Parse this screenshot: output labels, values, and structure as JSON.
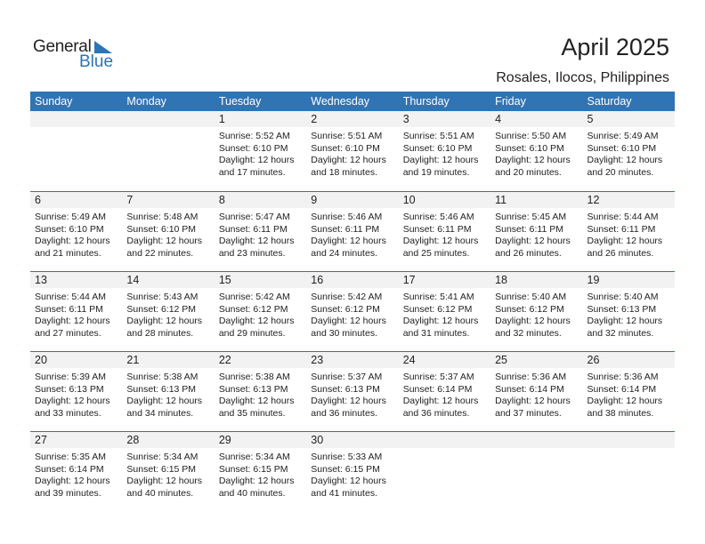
{
  "logo": {
    "text_general": "General",
    "text_blue": "Blue",
    "accent": "#2a74b8"
  },
  "title": "April 2025",
  "location": "Rosales, Ilocos, Philippines",
  "header_color": "#2f74b5",
  "weekdays": [
    "Sunday",
    "Monday",
    "Tuesday",
    "Wednesday",
    "Thursday",
    "Friday",
    "Saturday"
  ],
  "weeks": [
    [
      null,
      null,
      {
        "day": "1",
        "sunrise": "Sunrise: 5:52 AM",
        "sunset": "Sunset: 6:10 PM",
        "daylight1": "Daylight: 12 hours",
        "daylight2": "and 17 minutes."
      },
      {
        "day": "2",
        "sunrise": "Sunrise: 5:51 AM",
        "sunset": "Sunset: 6:10 PM",
        "daylight1": "Daylight: 12 hours",
        "daylight2": "and 18 minutes."
      },
      {
        "day": "3",
        "sunrise": "Sunrise: 5:51 AM",
        "sunset": "Sunset: 6:10 PM",
        "daylight1": "Daylight: 12 hours",
        "daylight2": "and 19 minutes."
      },
      {
        "day": "4",
        "sunrise": "Sunrise: 5:50 AM",
        "sunset": "Sunset: 6:10 PM",
        "daylight1": "Daylight: 12 hours",
        "daylight2": "and 20 minutes."
      },
      {
        "day": "5",
        "sunrise": "Sunrise: 5:49 AM",
        "sunset": "Sunset: 6:10 PM",
        "daylight1": "Daylight: 12 hours",
        "daylight2": "and 20 minutes."
      }
    ],
    [
      {
        "day": "6",
        "sunrise": "Sunrise: 5:49 AM",
        "sunset": "Sunset: 6:10 PM",
        "daylight1": "Daylight: 12 hours",
        "daylight2": "and 21 minutes."
      },
      {
        "day": "7",
        "sunrise": "Sunrise: 5:48 AM",
        "sunset": "Sunset: 6:10 PM",
        "daylight1": "Daylight: 12 hours",
        "daylight2": "and 22 minutes."
      },
      {
        "day": "8",
        "sunrise": "Sunrise: 5:47 AM",
        "sunset": "Sunset: 6:11 PM",
        "daylight1": "Daylight: 12 hours",
        "daylight2": "and 23 minutes."
      },
      {
        "day": "9",
        "sunrise": "Sunrise: 5:46 AM",
        "sunset": "Sunset: 6:11 PM",
        "daylight1": "Daylight: 12 hours",
        "daylight2": "and 24 minutes."
      },
      {
        "day": "10",
        "sunrise": "Sunrise: 5:46 AM",
        "sunset": "Sunset: 6:11 PM",
        "daylight1": "Daylight: 12 hours",
        "daylight2": "and 25 minutes."
      },
      {
        "day": "11",
        "sunrise": "Sunrise: 5:45 AM",
        "sunset": "Sunset: 6:11 PM",
        "daylight1": "Daylight: 12 hours",
        "daylight2": "and 26 minutes."
      },
      {
        "day": "12",
        "sunrise": "Sunrise: 5:44 AM",
        "sunset": "Sunset: 6:11 PM",
        "daylight1": "Daylight: 12 hours",
        "daylight2": "and 26 minutes."
      }
    ],
    [
      {
        "day": "13",
        "sunrise": "Sunrise: 5:44 AM",
        "sunset": "Sunset: 6:11 PM",
        "daylight1": "Daylight: 12 hours",
        "daylight2": "and 27 minutes."
      },
      {
        "day": "14",
        "sunrise": "Sunrise: 5:43 AM",
        "sunset": "Sunset: 6:12 PM",
        "daylight1": "Daylight: 12 hours",
        "daylight2": "and 28 minutes."
      },
      {
        "day": "15",
        "sunrise": "Sunrise: 5:42 AM",
        "sunset": "Sunset: 6:12 PM",
        "daylight1": "Daylight: 12 hours",
        "daylight2": "and 29 minutes."
      },
      {
        "day": "16",
        "sunrise": "Sunrise: 5:42 AM",
        "sunset": "Sunset: 6:12 PM",
        "daylight1": "Daylight: 12 hours",
        "daylight2": "and 30 minutes."
      },
      {
        "day": "17",
        "sunrise": "Sunrise: 5:41 AM",
        "sunset": "Sunset: 6:12 PM",
        "daylight1": "Daylight: 12 hours",
        "daylight2": "and 31 minutes."
      },
      {
        "day": "18",
        "sunrise": "Sunrise: 5:40 AM",
        "sunset": "Sunset: 6:12 PM",
        "daylight1": "Daylight: 12 hours",
        "daylight2": "and 32 minutes."
      },
      {
        "day": "19",
        "sunrise": "Sunrise: 5:40 AM",
        "sunset": "Sunset: 6:13 PM",
        "daylight1": "Daylight: 12 hours",
        "daylight2": "and 32 minutes."
      }
    ],
    [
      {
        "day": "20",
        "sunrise": "Sunrise: 5:39 AM",
        "sunset": "Sunset: 6:13 PM",
        "daylight1": "Daylight: 12 hours",
        "daylight2": "and 33 minutes."
      },
      {
        "day": "21",
        "sunrise": "Sunrise: 5:38 AM",
        "sunset": "Sunset: 6:13 PM",
        "daylight1": "Daylight: 12 hours",
        "daylight2": "and 34 minutes."
      },
      {
        "day": "22",
        "sunrise": "Sunrise: 5:38 AM",
        "sunset": "Sunset: 6:13 PM",
        "daylight1": "Daylight: 12 hours",
        "daylight2": "and 35 minutes."
      },
      {
        "day": "23",
        "sunrise": "Sunrise: 5:37 AM",
        "sunset": "Sunset: 6:13 PM",
        "daylight1": "Daylight: 12 hours",
        "daylight2": "and 36 minutes."
      },
      {
        "day": "24",
        "sunrise": "Sunrise: 5:37 AM",
        "sunset": "Sunset: 6:14 PM",
        "daylight1": "Daylight: 12 hours",
        "daylight2": "and 36 minutes."
      },
      {
        "day": "25",
        "sunrise": "Sunrise: 5:36 AM",
        "sunset": "Sunset: 6:14 PM",
        "daylight1": "Daylight: 12 hours",
        "daylight2": "and 37 minutes."
      },
      {
        "day": "26",
        "sunrise": "Sunrise: 5:36 AM",
        "sunset": "Sunset: 6:14 PM",
        "daylight1": "Daylight: 12 hours",
        "daylight2": "and 38 minutes."
      }
    ],
    [
      {
        "day": "27",
        "sunrise": "Sunrise: 5:35 AM",
        "sunset": "Sunset: 6:14 PM",
        "daylight1": "Daylight: 12 hours",
        "daylight2": "and 39 minutes."
      },
      {
        "day": "28",
        "sunrise": "Sunrise: 5:34 AM",
        "sunset": "Sunset: 6:15 PM",
        "daylight1": "Daylight: 12 hours",
        "daylight2": "and 40 minutes."
      },
      {
        "day": "29",
        "sunrise": "Sunrise: 5:34 AM",
        "sunset": "Sunset: 6:15 PM",
        "daylight1": "Daylight: 12 hours",
        "daylight2": "and 40 minutes."
      },
      {
        "day": "30",
        "sunrise": "Sunrise: 5:33 AM",
        "sunset": "Sunset: 6:15 PM",
        "daylight1": "Daylight: 12 hours",
        "daylight2": "and 41 minutes."
      },
      null,
      null,
      null
    ]
  ]
}
